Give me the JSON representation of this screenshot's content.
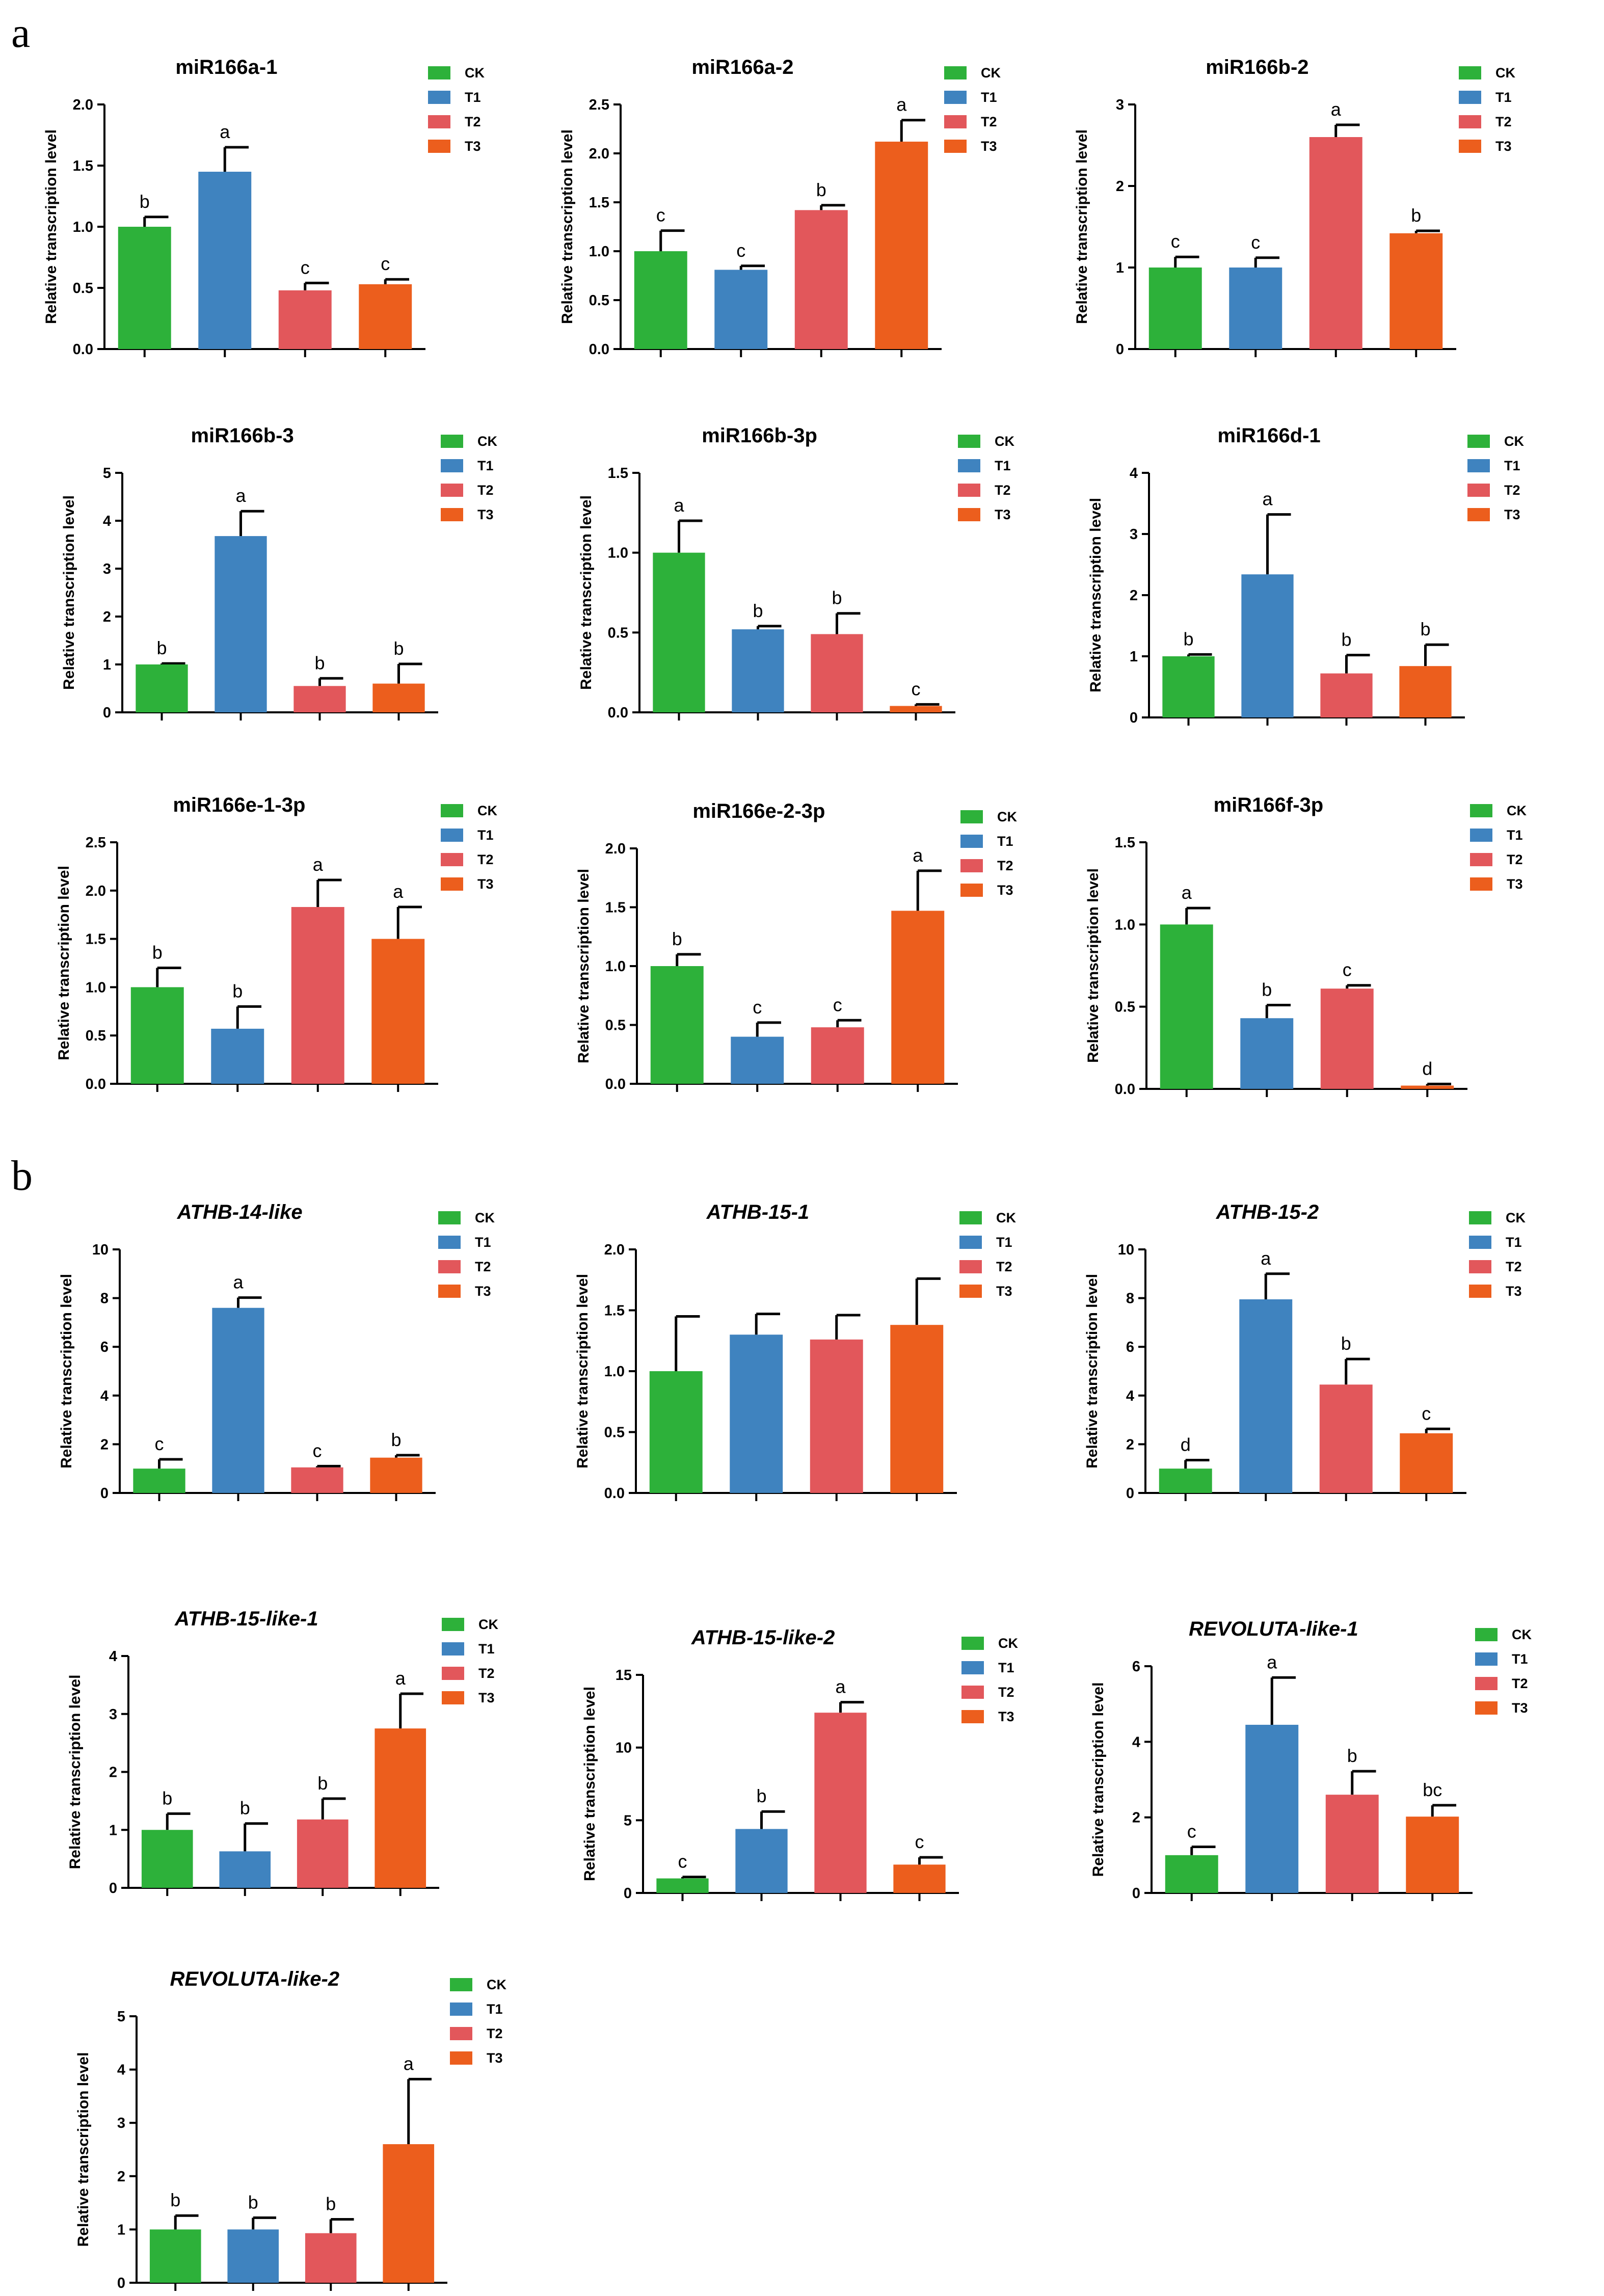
{
  "panel_labels": [
    "a",
    "b"
  ],
  "legend": [
    {
      "name": "CK",
      "color": "#2db13a"
    },
    {
      "name": "T1",
      "color": "#3f83bf"
    },
    {
      "name": "T2",
      "color": "#e2575b"
    },
    {
      "name": "T3",
      "color": "#ec5e1d"
    }
  ],
  "chart_data": [
    {
      "type": "bar",
      "title": "miR166a-1",
      "italic": false,
      "ylabel": "Relative transcription level",
      "categories": [
        "CK",
        "T1",
        "T2",
        "T3"
      ],
      "values": [
        1.0,
        1.45,
        0.48,
        0.53
      ],
      "errors": [
        0.08,
        0.2,
        0.06,
        0.04
      ],
      "letters": [
        "b",
        "a",
        "c",
        "c"
      ],
      "ylim": [
        0,
        2.0
      ],
      "yticks": [
        "0.0",
        "0.5",
        "1.0",
        "1.5",
        "2.0"
      ]
    },
    {
      "type": "bar",
      "title": "miR166a-2",
      "italic": false,
      "ylabel": "Relative transcription level",
      "categories": [
        "CK",
        "T1",
        "T2",
        "T3"
      ],
      "values": [
        1.0,
        0.81,
        1.42,
        2.12
      ],
      "errors": [
        0.21,
        0.04,
        0.05,
        0.22
      ],
      "letters": [
        "c",
        "c",
        "b",
        "a"
      ],
      "ylim": [
        0,
        2.5
      ],
      "yticks": [
        "0.0",
        "0.5",
        "1.0",
        "1.5",
        "2.0",
        "2.5"
      ]
    },
    {
      "type": "bar",
      "title": "miR166b-2",
      "italic": false,
      "ylabel": "Relative transcription level",
      "categories": [
        "CK",
        "T1",
        "T2",
        "T3"
      ],
      "values": [
        1.0,
        1.0,
        2.6,
        1.42
      ],
      "errors": [
        0.13,
        0.12,
        0.15,
        0.03
      ],
      "letters": [
        "c",
        "c",
        "a",
        "b"
      ],
      "ylim": [
        0,
        3
      ],
      "yticks": [
        "0",
        "1",
        "2",
        "3"
      ]
    },
    {
      "type": "bar",
      "title": "miR166b-3",
      "italic": false,
      "ylabel": "Relative transcription level",
      "categories": [
        "CK",
        "T1",
        "T2",
        "T3"
      ],
      "values": [
        1.0,
        3.68,
        0.55,
        0.6
      ],
      "errors": [
        0.02,
        0.52,
        0.16,
        0.41
      ],
      "letters": [
        "b",
        "a",
        "b",
        "b"
      ],
      "ylim": [
        0,
        5
      ],
      "yticks": [
        "0",
        "1",
        "2",
        "3",
        "4",
        "5"
      ]
    },
    {
      "type": "bar",
      "title": "miR166b-3p",
      "italic": false,
      "ylabel": "Relative transcription level",
      "categories": [
        "CK",
        "T1",
        "T2",
        "T3"
      ],
      "values": [
        1.0,
        0.52,
        0.49,
        0.04
      ],
      "errors": [
        0.2,
        0.02,
        0.13,
        0.01
      ],
      "letters": [
        "a",
        "b",
        "b",
        "c"
      ],
      "ylim": [
        0,
        1.5
      ],
      "yticks": [
        "0.0",
        "0.5",
        "1.0",
        "1.5"
      ]
    },
    {
      "type": "bar",
      "title": "miR166d-1",
      "italic": false,
      "ylabel": "Relative transcription level",
      "categories": [
        "CK",
        "T1",
        "T2",
        "T3"
      ],
      "values": [
        1.0,
        2.34,
        0.72,
        0.84
      ],
      "errors": [
        0.03,
        0.98,
        0.3,
        0.35
      ],
      "letters": [
        "b",
        "a",
        "b",
        "b"
      ],
      "ylim": [
        0,
        4
      ],
      "yticks": [
        "0",
        "1",
        "2",
        "3",
        "4"
      ]
    },
    {
      "type": "bar",
      "title": "miR166e-1-3p",
      "italic": false,
      "ylabel": "Relative transcription level",
      "categories": [
        "CK",
        "T1",
        "T2",
        "T3"
      ],
      "values": [
        1.0,
        0.57,
        1.83,
        1.5
      ],
      "errors": [
        0.2,
        0.23,
        0.28,
        0.33
      ],
      "letters": [
        "b",
        "b",
        "a",
        "a"
      ],
      "ylim": [
        0,
        2.5
      ],
      "yticks": [
        "0.0",
        "0.5",
        "1.0",
        "1.5",
        "2.0",
        "2.5"
      ]
    },
    {
      "type": "bar",
      "title": "miR166e-2-3p",
      "italic": false,
      "ylabel": "Relative transcription level",
      "categories": [
        "CK",
        "T1",
        "T2",
        "T3"
      ],
      "values": [
        1.0,
        0.4,
        0.48,
        1.47
      ],
      "errors": [
        0.1,
        0.12,
        0.06,
        0.34
      ],
      "letters": [
        "b",
        "c",
        "c",
        "a"
      ],
      "ylim": [
        0,
        2.0
      ],
      "yticks": [
        "0.0",
        "0.5",
        "1.0",
        "1.5",
        "2.0"
      ]
    },
    {
      "type": "bar",
      "title": "miR166f-3p",
      "italic": false,
      "ylabel": "Relative transcription level",
      "categories": [
        "CK",
        "T1",
        "T2",
        "T3"
      ],
      "values": [
        1.0,
        0.43,
        0.61,
        0.02
      ],
      "errors": [
        0.1,
        0.08,
        0.02,
        0.01
      ],
      "letters": [
        "a",
        "b",
        "c",
        "d"
      ],
      "ylim": [
        0,
        1.5
      ],
      "yticks": [
        "0.0",
        "0.5",
        "1.0",
        "1.5"
      ]
    },
    {
      "type": "bar",
      "title": "ATHB-14-like",
      "italic": true,
      "ylabel": "Relative transcription level",
      "categories": [
        "CK",
        "T1",
        "T2",
        "T3"
      ],
      "values": [
        1.0,
        7.6,
        1.05,
        1.45
      ],
      "errors": [
        0.38,
        0.42,
        0.05,
        0.1
      ],
      "letters": [
        "c",
        "a",
        "c",
        "b"
      ],
      "ylim": [
        0,
        10
      ],
      "yticks": [
        "0",
        "2",
        "4",
        "6",
        "8",
        "10"
      ]
    },
    {
      "type": "bar",
      "title": "ATHB-15-1",
      "italic": true,
      "ylabel": "Relative transcription level",
      "categories": [
        "CK",
        "T1",
        "T2",
        "T3"
      ],
      "values": [
        1.0,
        1.3,
        1.26,
        1.38
      ],
      "errors": [
        0.45,
        0.17,
        0.2,
        0.38
      ],
      "letters": [
        "",
        "",
        "",
        ""
      ],
      "ylim": [
        0,
        2.0
      ],
      "yticks": [
        "0.0",
        "0.5",
        "1.0",
        "1.5",
        "2.0"
      ]
    },
    {
      "type": "bar",
      "title": "ATHB-15-2",
      "italic": true,
      "ylabel": "Relative transcription level",
      "categories": [
        "CK",
        "T1",
        "T2",
        "T3"
      ],
      "values": [
        1.0,
        7.95,
        4.45,
        2.45
      ],
      "errors": [
        0.35,
        1.05,
        1.05,
        0.18
      ],
      "letters": [
        "d",
        "a",
        "b",
        "c"
      ],
      "ylim": [
        0,
        10
      ],
      "yticks": [
        "0",
        "2",
        "4",
        "6",
        "8",
        "10"
      ]
    },
    {
      "type": "bar",
      "title": "ATHB-15-like-1",
      "italic": true,
      "ylabel": "Relative transcription level",
      "categories": [
        "CK",
        "T1",
        "T2",
        "T3"
      ],
      "values": [
        1.0,
        0.63,
        1.18,
        2.75
      ],
      "errors": [
        0.28,
        0.48,
        0.36,
        0.6
      ],
      "letters": [
        "b",
        "b",
        "b",
        "a"
      ],
      "ylim": [
        0,
        4
      ],
      "yticks": [
        "0",
        "1",
        "2",
        "3",
        "4"
      ]
    },
    {
      "type": "bar",
      "title": "ATHB-15-like-2",
      "italic": true,
      "ylabel": "Relative transcription level",
      "categories": [
        "CK",
        "T1",
        "T2",
        "T3"
      ],
      "values": [
        1.0,
        4.4,
        12.4,
        1.95
      ],
      "errors": [
        0.1,
        1.2,
        0.72,
        0.5
      ],
      "letters": [
        "c",
        "b",
        "a",
        "c"
      ],
      "ylim": [
        0,
        15
      ],
      "yticks": [
        "0",
        "5",
        "10",
        "15"
      ]
    },
    {
      "type": "bar",
      "title": "REVOLUTA-like-1",
      "italic": true,
      "ylabel": "Relative transcription level",
      "categories": [
        "CK",
        "T1",
        "T2",
        "T3"
      ],
      "values": [
        1.0,
        4.45,
        2.6,
        2.02
      ],
      "errors": [
        0.22,
        1.25,
        0.62,
        0.3
      ],
      "letters": [
        "c",
        "a",
        "b",
        "bc"
      ],
      "ylim": [
        0,
        6
      ],
      "yticks": [
        "0",
        "2",
        "4",
        "6"
      ]
    },
    {
      "type": "bar",
      "title": "REVOLUTA-like-2",
      "italic": true,
      "ylabel": "Relative transcription level",
      "categories": [
        "CK",
        "T1",
        "T2",
        "T3"
      ],
      "values": [
        1.0,
        1.0,
        0.93,
        2.6
      ],
      "errors": [
        0.26,
        0.22,
        0.26,
        1.22
      ],
      "letters": [
        "b",
        "b",
        "b",
        "a"
      ],
      "ylim": [
        0,
        5
      ],
      "yticks": [
        "0",
        "1",
        "2",
        "3",
        "4",
        "5"
      ]
    }
  ]
}
